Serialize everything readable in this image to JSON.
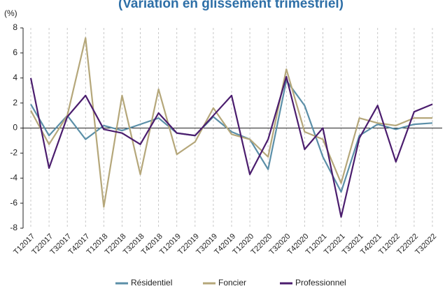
{
  "chart_data": {
    "type": "line",
    "title": "(Variation en glissement trimestriel)",
    "y_label": "(%)",
    "categories": [
      "T12017",
      "T22017",
      "T32017",
      "T42017",
      "T12018",
      "T22018",
      "T32018",
      "T42018",
      "T12019",
      "T22019",
      "T32019",
      "T42019",
      "T12020",
      "T22020",
      "T32020",
      "T42020",
      "T12021",
      "T22021",
      "T32021",
      "T42021",
      "T12022",
      "T22022",
      "T32022"
    ],
    "series": [
      {
        "name": "Résidentiel",
        "color": "#5b8fa8",
        "values": [
          1.9,
          -0.6,
          1.0,
          -0.9,
          0.2,
          -0.2,
          0.3,
          0.8,
          -0.4,
          -0.6,
          0.9,
          -0.3,
          -0.9,
          -3.3,
          3.8,
          1.8,
          -2.3,
          -5.1,
          -0.6,
          0.3,
          -0.1,
          0.3,
          0.4
        ]
      },
      {
        "name": "Foncier",
        "color": "#b5a77a",
        "values": [
          1.4,
          -1.3,
          1.0,
          7.2,
          -6.3,
          2.6,
          -3.7,
          3.1,
          -2.1,
          -1.1,
          1.6,
          -0.5,
          -0.9,
          -2.3,
          4.7,
          -0.3,
          -0.9,
          -4.4,
          0.8,
          0.4,
          0.2,
          0.8,
          0.8
        ]
      },
      {
        "name": "Professionnel",
        "color": "#4b1d6e",
        "values": [
          4.0,
          -3.2,
          0.9,
          2.6,
          -0.1,
          -0.4,
          -1.3,
          1.2,
          -0.4,
          -0.6,
          1.0,
          2.6,
          -3.7,
          -0.9,
          4.1,
          -1.7,
          0.0,
          -7.1,
          -0.8,
          1.8,
          -2.7,
          1.3,
          1.9
        ]
      }
    ],
    "ylim": [
      -8,
      8
    ],
    "yticks": [
      -8,
      -6,
      -4,
      -2,
      0,
      2,
      4,
      6,
      8
    ],
    "grid": true,
    "legend": "bottom"
  }
}
